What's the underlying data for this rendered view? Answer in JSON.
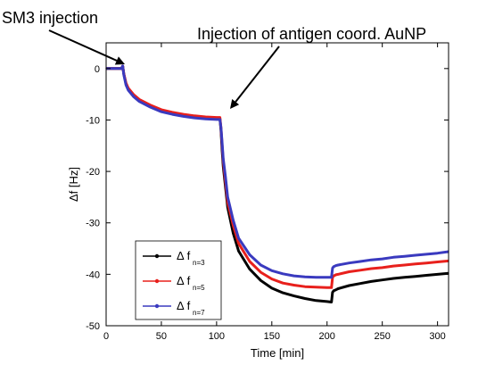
{
  "chart_data": {
    "type": "line",
    "title": "",
    "xlabel": "Time [min]",
    "ylabel": "Δf [Hz]",
    "xlim": [
      0,
      310
    ],
    "ylim": [
      -50,
      5
    ],
    "xticks": [
      0,
      50,
      100,
      150,
      200,
      250,
      300
    ],
    "yticks": [
      0,
      -10,
      -20,
      -30,
      -40,
      -50
    ],
    "grid": false,
    "legend_position": "lower-left",
    "annotations": [
      {
        "text": "SM3 injection",
        "x": 15,
        "y": 0
      },
      {
        "text": "Injection of antigen coord. AuNP",
        "x": 105,
        "y": -10
      }
    ],
    "series": [
      {
        "name": "Δ f",
        "subscript": "n=3",
        "color": "#000000",
        "x": [
          0,
          14,
          15,
          16,
          18,
          20,
          25,
          30,
          40,
          50,
          60,
          70,
          80,
          90,
          100,
          103,
          104,
          105,
          106,
          108,
          110,
          115,
          120,
          130,
          140,
          150,
          160,
          170,
          180,
          190,
          200,
          204,
          205,
          206,
          208,
          210,
          220,
          230,
          240,
          250,
          260,
          270,
          280,
          290,
          300,
          310
        ],
        "y": [
          0,
          0,
          0.5,
          -1,
          -3,
          -4,
          -5.3,
          -6.2,
          -7.3,
          -8.2,
          -8.7,
          -9.1,
          -9.4,
          -9.6,
          -9.7,
          -9.7,
          -12,
          -16,
          -19,
          -23,
          -27,
          -32,
          -35.5,
          -39,
          -41.2,
          -42.7,
          -43.6,
          -44.2,
          -44.7,
          -45.1,
          -45.3,
          -45.4,
          -43.5,
          -43.2,
          -43,
          -42.8,
          -42.2,
          -41.8,
          -41.4,
          -41.1,
          -40.8,
          -40.6,
          -40.4,
          -40.2,
          -40.0,
          -39.8
        ]
      },
      {
        "name": "Δ f",
        "subscript": "n=5",
        "color": "#e8201c",
        "x": [
          0,
          14,
          15,
          16,
          18,
          20,
          25,
          30,
          40,
          50,
          60,
          70,
          80,
          90,
          100,
          103,
          104,
          105,
          106,
          108,
          110,
          115,
          120,
          130,
          140,
          150,
          160,
          170,
          180,
          190,
          200,
          204,
          205,
          206,
          208,
          210,
          220,
          230,
          240,
          250,
          260,
          270,
          280,
          290,
          300,
          310
        ],
        "y": [
          0,
          0,
          0.5,
          -1,
          -2.8,
          -3.8,
          -5.1,
          -6,
          -7.1,
          -8,
          -8.5,
          -8.9,
          -9.2,
          -9.4,
          -9.5,
          -9.5,
          -11.5,
          -15,
          -18,
          -22,
          -26,
          -30.5,
          -34,
          -37.5,
          -39.6,
          -40.9,
          -41.7,
          -42.1,
          -42.4,
          -42.5,
          -42.6,
          -42.6,
          -40.6,
          -40.3,
          -40.1,
          -40.0,
          -39.5,
          -39.2,
          -38.9,
          -38.7,
          -38.4,
          -38.2,
          -38.0,
          -37.8,
          -37.6,
          -37.4
        ]
      },
      {
        "name": "Δ f",
        "subscript": "n=7",
        "color": "#3a3abf",
        "x": [
          0,
          14,
          15,
          16,
          18,
          20,
          25,
          30,
          40,
          50,
          60,
          70,
          80,
          90,
          100,
          103,
          104,
          105,
          106,
          108,
          110,
          115,
          120,
          130,
          140,
          150,
          160,
          170,
          180,
          190,
          200,
          204,
          205,
          206,
          208,
          210,
          220,
          230,
          240,
          250,
          260,
          270,
          280,
          290,
          300,
          310
        ],
        "y": [
          0,
          0,
          0.5,
          -1.2,
          -3.2,
          -4.2,
          -5.5,
          -6.4,
          -7.5,
          -8.4,
          -8.9,
          -9.3,
          -9.6,
          -9.8,
          -9.9,
          -9.9,
          -11.5,
          -14.5,
          -17.5,
          -21,
          -25,
          -29.5,
          -33,
          -36.2,
          -38.2,
          -39.3,
          -39.9,
          -40.3,
          -40.5,
          -40.6,
          -40.6,
          -40.6,
          -38.8,
          -38.5,
          -38.3,
          -38.2,
          -37.8,
          -37.5,
          -37.2,
          -37.0,
          -36.7,
          -36.5,
          -36.3,
          -36.1,
          -35.9,
          -35.6
        ]
      }
    ]
  }
}
